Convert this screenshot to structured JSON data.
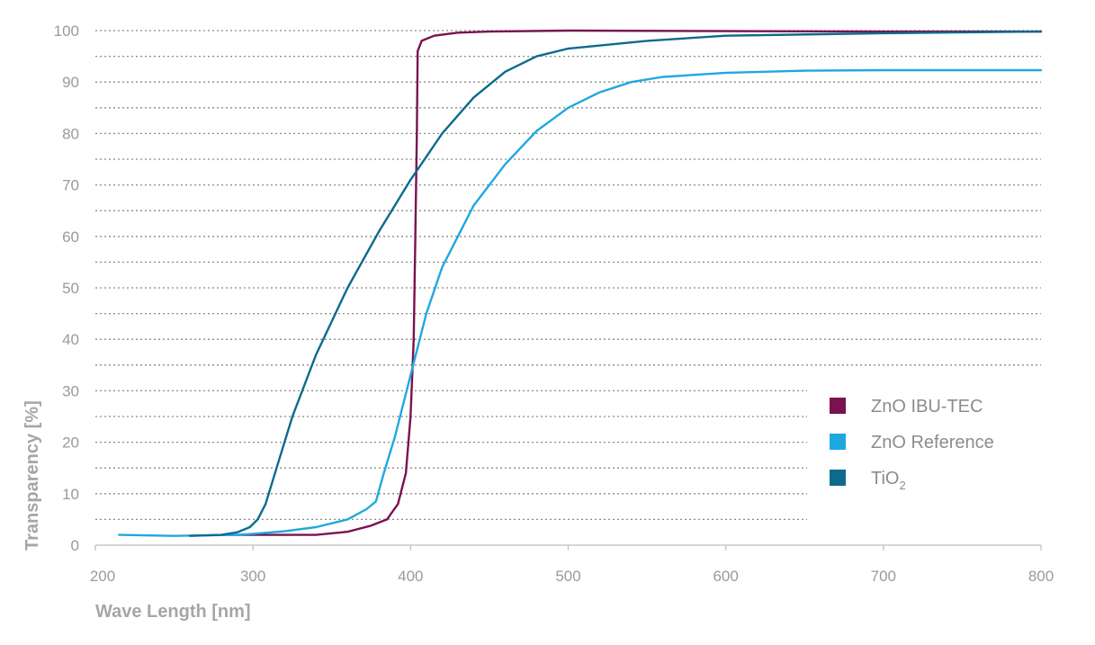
{
  "chart_data": {
    "type": "line",
    "xlabel": "Wave Length [nm]",
    "ylabel": "Transparency [%]",
    "xlim": [
      200,
      800
    ],
    "ylim": [
      0,
      100
    ],
    "x_ticks": [
      "200",
      "300",
      "400",
      "500",
      "600",
      "700",
      "800"
    ],
    "y_ticks": [
      "0",
      "10",
      "20",
      "30",
      "40",
      "50",
      "60",
      "70",
      "80",
      "90",
      "100"
    ],
    "grid": "horizontal dotted, every 5%",
    "legend_position": "right-middle",
    "series": [
      {
        "name": "ZnO IBU-TEC",
        "color": "#7a1250",
        "points": [
          [
            285,
            2
          ],
          [
            300,
            2
          ],
          [
            320,
            2
          ],
          [
            340,
            2
          ],
          [
            360,
            2.6
          ],
          [
            375,
            3.8
          ],
          [
            385,
            5
          ],
          [
            392,
            8
          ],
          [
            397,
            14
          ],
          [
            400,
            25
          ],
          [
            402,
            40
          ],
          [
            403,
            60
          ],
          [
            404,
            80
          ],
          [
            404.5,
            96
          ],
          [
            407,
            98
          ],
          [
            415,
            99
          ],
          [
            430,
            99.6
          ],
          [
            450,
            99.8
          ],
          [
            500,
            100
          ],
          [
            600,
            99.9
          ],
          [
            700,
            99.8
          ],
          [
            800,
            99.8
          ]
        ]
      },
      {
        "name": "ZnO Reference",
        "color": "#1fa8e0",
        "points": [
          [
            215,
            2
          ],
          [
            230,
            1.9
          ],
          [
            250,
            1.8
          ],
          [
            270,
            1.9
          ],
          [
            290,
            2
          ],
          [
            300,
            2.2
          ],
          [
            320,
            2.7
          ],
          [
            340,
            3.5
          ],
          [
            360,
            5
          ],
          [
            372,
            7
          ],
          [
            378,
            8.5
          ],
          [
            383,
            14
          ],
          [
            390,
            21
          ],
          [
            400,
            33
          ],
          [
            410,
            45
          ],
          [
            420,
            54
          ],
          [
            440,
            66
          ],
          [
            460,
            74
          ],
          [
            480,
            80.5
          ],
          [
            500,
            85
          ],
          [
            520,
            88
          ],
          [
            540,
            90
          ],
          [
            560,
            91
          ],
          [
            600,
            91.8
          ],
          [
            650,
            92.2
          ],
          [
            700,
            92.3
          ],
          [
            800,
            92.3
          ]
        ]
      },
      {
        "name": "TiO2",
        "name_parts": [
          "TiO",
          "2"
        ],
        "color": "#0e6a8c",
        "points": [
          [
            260,
            1.8
          ],
          [
            280,
            2
          ],
          [
            290,
            2.5
          ],
          [
            298,
            3.5
          ],
          [
            303,
            5
          ],
          [
            308,
            8
          ],
          [
            315,
            15
          ],
          [
            325,
            25
          ],
          [
            340,
            37
          ],
          [
            360,
            50
          ],
          [
            380,
            61
          ],
          [
            400,
            71
          ],
          [
            420,
            80
          ],
          [
            440,
            87
          ],
          [
            460,
            92
          ],
          [
            480,
            95
          ],
          [
            500,
            96.5
          ],
          [
            550,
            98
          ],
          [
            600,
            99
          ],
          [
            700,
            99.5
          ],
          [
            800,
            99.8
          ]
        ]
      }
    ]
  }
}
